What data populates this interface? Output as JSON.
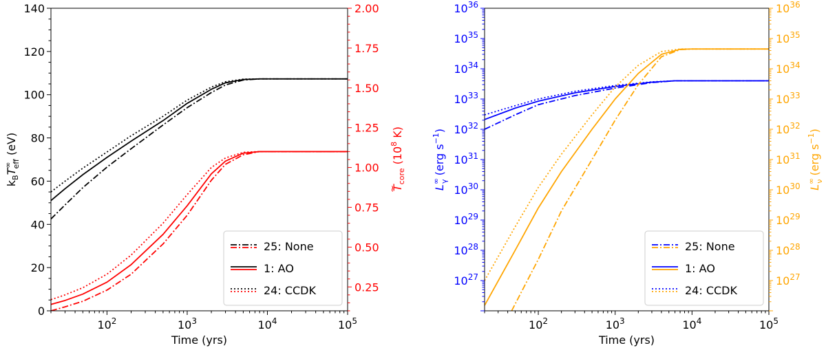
{
  "chart_data": [
    {
      "type": "line",
      "xlabel": "Time (yrs)",
      "xscale": "log",
      "xlim": [
        20,
        100000
      ],
      "xticks": [
        {
          "v": 100,
          "exp": "2"
        },
        {
          "v": 1000,
          "exp": "3"
        },
        {
          "v": 10000,
          "exp": "4"
        },
        {
          "v": 100000,
          "exp": "5"
        }
      ],
      "ylabel_left": {
        "base": "k",
        "sub": "B",
        "mid": "T",
        "sup": "∞",
        "sub2": "eff",
        "tail": " (eV)"
      },
      "ylabel_right": {
        "base": "T",
        "accent": "~",
        "sub": "core",
        "tail": " (10",
        "sup": "8",
        "tail2": " K)"
      },
      "ylim_left": [
        0,
        140
      ],
      "yticks_left": [
        "0",
        "20",
        "40",
        "60",
        "80",
        "100",
        "120",
        "140"
      ],
      "ylim_right": [
        0.1,
        2.0
      ],
      "yticks_right": [
        "0.25",
        "0.50",
        "0.75",
        "1.00",
        "1.25",
        "1.50",
        "1.75",
        "2.00"
      ],
      "left_color": "#000000",
      "right_color": "#ff0000",
      "legend_position": "lower-right",
      "legend": [
        {
          "label": "25: None",
          "style": "dashdot"
        },
        {
          "label": "1: AO",
          "style": "solid"
        },
        {
          "label": "24: CCDK",
          "style": "dotted"
        }
      ],
      "series": [
        {
          "name": "25: None",
          "axis": "left",
          "color": "#000000",
          "style": "dashdot",
          "points": [
            [
              20,
              42.5
            ],
            [
              30,
              49
            ],
            [
              50,
              57
            ],
            [
              100,
              66.5
            ],
            [
              200,
              75
            ],
            [
              500,
              86
            ],
            [
              1000,
              94
            ],
            [
              2000,
              101
            ],
            [
              3000,
              104.5
            ],
            [
              5000,
              106.8
            ],
            [
              8000,
              107.3
            ],
            [
              100000,
              107.3
            ]
          ]
        },
        {
          "name": "1: AO",
          "axis": "left",
          "color": "#000000",
          "style": "solid",
          "points": [
            [
              20,
              51
            ],
            [
              30,
              56.5
            ],
            [
              50,
              63
            ],
            [
              100,
              71
            ],
            [
              200,
              78.5
            ],
            [
              500,
              88
            ],
            [
              1000,
              96
            ],
            [
              2000,
              102.5
            ],
            [
              3000,
              105.5
            ],
            [
              5000,
              107
            ],
            [
              8000,
              107.3
            ],
            [
              100000,
              107.3
            ]
          ]
        },
        {
          "name": "24: CCDK",
          "axis": "left",
          "color": "#000000",
          "style": "dotted",
          "points": [
            [
              20,
              55
            ],
            [
              30,
              60
            ],
            [
              50,
              66
            ],
            [
              100,
              73.5
            ],
            [
              200,
              81
            ],
            [
              500,
              90
            ],
            [
              1000,
              97.5
            ],
            [
              2000,
              103.5
            ],
            [
              3000,
              106
            ],
            [
              5000,
              107.2
            ],
            [
              8000,
              107.3
            ],
            [
              100000,
              107.3
            ]
          ]
        },
        {
          "name": "25: None",
          "axis": "right",
          "color": "#ff0000",
          "style": "dashdot",
          "points": [
            [
              20,
              0.1
            ],
            [
              30,
              0.125
            ],
            [
              50,
              0.16
            ],
            [
              100,
              0.23
            ],
            [
              200,
              0.33
            ],
            [
              500,
              0.52
            ],
            [
              1000,
              0.7
            ],
            [
              2000,
              0.92
            ],
            [
              3000,
              1.02
            ],
            [
              5000,
              1.08
            ],
            [
              8000,
              1.1
            ],
            [
              100000,
              1.1
            ]
          ]
        },
        {
          "name": "1: AO",
          "axis": "right",
          "color": "#ff0000",
          "style": "solid",
          "points": [
            [
              20,
              0.14
            ],
            [
              30,
              0.165
            ],
            [
              50,
              0.205
            ],
            [
              100,
              0.28
            ],
            [
              200,
              0.39
            ],
            [
              500,
              0.58
            ],
            [
              1000,
              0.76
            ],
            [
              2000,
              0.96
            ],
            [
              3000,
              1.04
            ],
            [
              5000,
              1.09
            ],
            [
              8000,
              1.1
            ],
            [
              100000,
              1.1
            ]
          ]
        },
        {
          "name": "24: CCDK",
          "axis": "right",
          "color": "#ff0000",
          "style": "dotted",
          "points": [
            [
              20,
              0.17
            ],
            [
              30,
              0.2
            ],
            [
              50,
              0.245
            ],
            [
              100,
              0.33
            ],
            [
              200,
              0.45
            ],
            [
              500,
              0.65
            ],
            [
              1000,
              0.83
            ],
            [
              2000,
              1.0
            ],
            [
              3000,
              1.06
            ],
            [
              5000,
              1.095
            ],
            [
              8000,
              1.1
            ],
            [
              100000,
              1.1
            ]
          ]
        }
      ]
    },
    {
      "type": "line",
      "xlabel": "Time (yrs)",
      "xscale": "log",
      "xlim": [
        20,
        100000
      ],
      "xticks": [
        {
          "v": 100,
          "exp": "2"
        },
        {
          "v": 1000,
          "exp": "3"
        },
        {
          "v": 10000,
          "exp": "4"
        },
        {
          "v": 100000,
          "exp": "5"
        }
      ],
      "yscale": "log",
      "ylabel_left": {
        "base": "L",
        "sup": "∞",
        "sub": "γ",
        "tail": " (erg s",
        "sup2": "−1",
        "tail2": ")"
      },
      "ylabel_right": {
        "base": "L",
        "sup": "∞",
        "sub": "ν",
        "tail": " (erg s",
        "sup2": "−1",
        "tail2": ")"
      },
      "ylim_left": [
        1e+26,
        1e+36
      ],
      "yticks_left": [
        "27",
        "28",
        "29",
        "30",
        "31",
        "32",
        "33",
        "34",
        "35",
        "36"
      ],
      "ylim_right": [
        1e+26,
        1e+36
      ],
      "yticks_right": [
        "27",
        "28",
        "29",
        "30",
        "31",
        "32",
        "33",
        "34",
        "35",
        "36"
      ],
      "tick_base": "10",
      "left_color": "#0000ff",
      "right_color": "#ffa500",
      "legend_position": "lower-right",
      "legend": [
        {
          "label": "25: None",
          "style": "dashdot"
        },
        {
          "label": "1: AO",
          "style": "solid"
        },
        {
          "label": "24: CCDK",
          "style": "dotted"
        }
      ],
      "series": [
        {
          "name": "25: None",
          "axis": "left",
          "color": "#0000ff",
          "style": "dashdot",
          "points": [
            [
              20,
              1e+32
            ],
            [
              50,
              3e+32
            ],
            [
              100,
              6.5e+32
            ],
            [
              300,
              1.3e+33
            ],
            [
              1000,
              2.3e+33
            ],
            [
              3000,
              3.5e+33
            ],
            [
              6000,
              4e+33
            ],
            [
              10000,
              4e+33
            ],
            [
              100000,
              4e+33
            ]
          ]
        },
        {
          "name": "1: AO",
          "axis": "left",
          "color": "#0000ff",
          "style": "solid",
          "points": [
            [
              20,
              2.1e+32
            ],
            [
              50,
              5e+32
            ],
            [
              100,
              8.5e+32
            ],
            [
              300,
              1.6e+33
            ],
            [
              1000,
              2.6e+33
            ],
            [
              3000,
              3.6e+33
            ],
            [
              6000,
              4e+33
            ],
            [
              10000,
              4e+33
            ],
            [
              100000,
              4e+33
            ]
          ]
        },
        {
          "name": "24: CCDK",
          "axis": "left",
          "color": "#0000ff",
          "style": "dotted",
          "points": [
            [
              20,
              3e+32
            ],
            [
              50,
              6e+32
            ],
            [
              100,
              1e+33
            ],
            [
              300,
              1.8e+33
            ],
            [
              1000,
              2.8e+33
            ],
            [
              3000,
              3.7e+33
            ],
            [
              6000,
              4e+33
            ],
            [
              10000,
              4e+33
            ],
            [
              100000,
              4e+33
            ]
          ]
        },
        {
          "name": "25: None",
          "axis": "right",
          "color": "#ffa500",
          "style": "dashdot",
          "points": [
            [
              45,
              1e+26
            ],
            [
              100,
              5e+27
            ],
            [
              200,
              2e+29
            ],
            [
              500,
              1e+31
            ],
            [
              1000,
              2e+32
            ],
            [
              2000,
              3e+33
            ],
            [
              4000,
              2.5e+34
            ],
            [
              7000,
              4.3e+34
            ],
            [
              10000,
              4.5e+34
            ],
            [
              100000,
              4.5e+34
            ]
          ]
        },
        {
          "name": "1: AO",
          "axis": "right",
          "color": "#ffa500",
          "style": "solid",
          "points": [
            [
              20,
              1.5e+26
            ],
            [
              50,
              1e+28
            ],
            [
              100,
              2.5e+29
            ],
            [
              200,
              4e+30
            ],
            [
              500,
              1e+32
            ],
            [
              1000,
              1e+33
            ],
            [
              2000,
              7e+33
            ],
            [
              4000,
              3e+34
            ],
            [
              7000,
              4.4e+34
            ],
            [
              10000,
              4.5e+34
            ],
            [
              100000,
              4.5e+34
            ]
          ]
        },
        {
          "name": "24: CCDK",
          "axis": "right",
          "color": "#ffa500",
          "style": "dotted",
          "points": [
            [
              20,
              1e+27
            ],
            [
              50,
              6e+28
            ],
            [
              100,
              1.2e+30
            ],
            [
              200,
              1.5e+31
            ],
            [
              500,
              3e+32
            ],
            [
              1000,
              2.5e+33
            ],
            [
              2000,
              1.3e+34
            ],
            [
              4000,
              3.7e+34
            ],
            [
              7000,
              4.5e+34
            ],
            [
              10000,
              4.5e+34
            ],
            [
              100000,
              4.5e+34
            ]
          ]
        }
      ]
    }
  ]
}
